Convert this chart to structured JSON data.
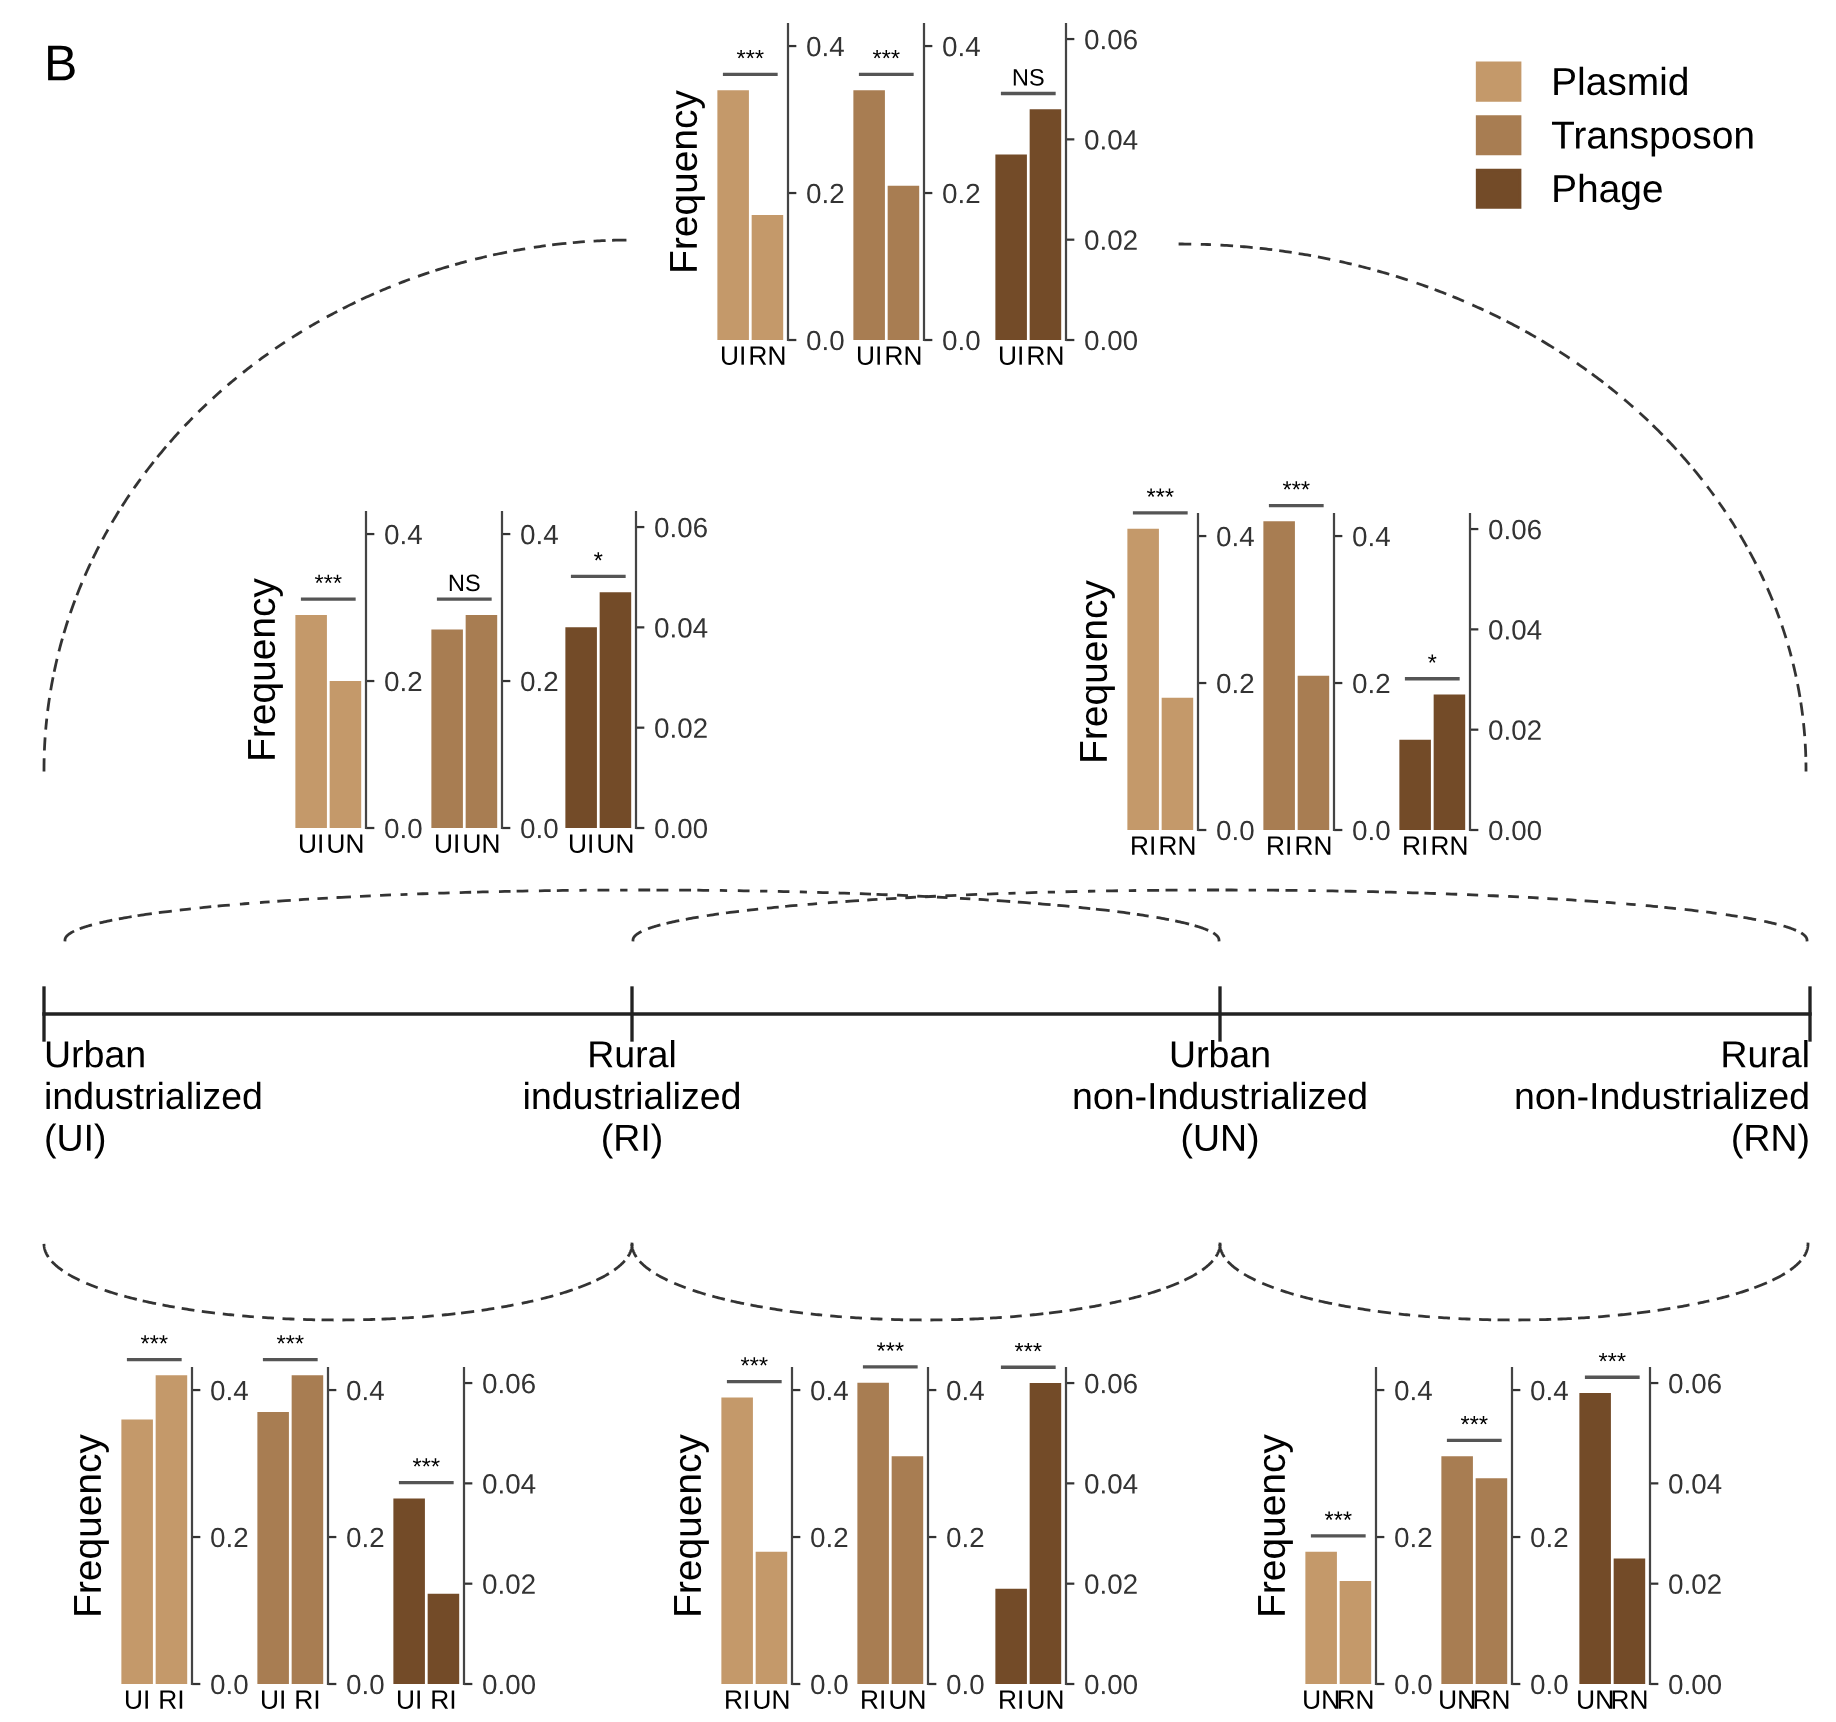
{
  "chart_data": [
    {
      "type": "bar",
      "ylabel": "Frequency",
      "categories": [
        "UI",
        "RN"
      ],
      "series": [
        {
          "name": "Plasmid",
          "color": "#c4996a",
          "values": [
            0.34,
            0.17
          ]
        }
      ],
      "ylim": [
        0,
        0.43
      ],
      "yticks": [
        {
          "value": 0,
          "label": "0.0"
        },
        {
          "value": 0.2,
          "label": "0.2"
        },
        {
          "value": 0.4,
          "label": "0.4"
        }
      ],
      "annotations": [
        "***"
      ],
      "legend": "top right"
    },
    {
      "type": "bar",
      "categories": [
        "UI",
        "RN"
      ],
      "series": [
        {
          "name": "Transposon",
          "color": "#a87d52",
          "values": [
            0.34,
            0.21
          ]
        }
      ],
      "ylim": [
        0,
        0.43
      ],
      "yticks": [
        {
          "value": 0,
          "label": "0.0"
        },
        {
          "value": 0.2,
          "label": "0.2"
        },
        {
          "value": 0.4,
          "label": "0.4"
        }
      ],
      "annotations": [
        "***"
      ]
    },
    {
      "type": "bar",
      "categories": [
        "UI",
        "RN"
      ],
      "series": [
        {
          "name": "Phage",
          "color": "#734b28",
          "values": [
            0.037,
            0.046
          ]
        }
      ],
      "ylim": [
        0,
        0.063
      ],
      "yticks": [
        {
          "value": 0,
          "label": "0.00"
        },
        {
          "value": 0.02,
          "label": "0.02"
        },
        {
          "value": 0.04,
          "label": "0.04"
        },
        {
          "value": 0.06,
          "label": "0.06"
        }
      ],
      "annotations": [
        "NS"
      ]
    },
    {
      "type": "bar",
      "ylabel": "Frequency",
      "categories": [
        "UI",
        "UN"
      ],
      "series": [
        {
          "name": "Plasmid",
          "color": "#c4996a",
          "values": [
            0.29,
            0.2
          ]
        }
      ],
      "ylim": [
        0,
        0.43
      ],
      "yticks": [
        {
          "value": 0,
          "label": "0.0"
        },
        {
          "value": 0.2,
          "label": "0.2"
        },
        {
          "value": 0.4,
          "label": "0.4"
        }
      ],
      "annotations": [
        "***"
      ]
    },
    {
      "type": "bar",
      "categories": [
        "UI",
        "UN"
      ],
      "series": [
        {
          "name": "Transposon",
          "color": "#a87d52",
          "values": [
            0.27,
            0.29
          ]
        }
      ],
      "ylim": [
        0,
        0.43
      ],
      "yticks": [
        {
          "value": 0,
          "label": "0.0"
        },
        {
          "value": 0.2,
          "label": "0.2"
        },
        {
          "value": 0.4,
          "label": "0.4"
        }
      ],
      "annotations": [
        "NS"
      ]
    },
    {
      "type": "bar",
      "categories": [
        "UI",
        "UN"
      ],
      "series": [
        {
          "name": "Phage",
          "color": "#734b28",
          "values": [
            0.04,
            0.047
          ]
        }
      ],
      "ylim": [
        0,
        0.063
      ],
      "yticks": [
        {
          "value": 0,
          "label": "0.00"
        },
        {
          "value": 0.02,
          "label": "0.02"
        },
        {
          "value": 0.04,
          "label": "0.04"
        },
        {
          "value": 0.06,
          "label": "0.06"
        }
      ],
      "annotations": [
        "*"
      ]
    },
    {
      "type": "bar",
      "ylabel": "Frequency",
      "categories": [
        "RI",
        "RN"
      ],
      "series": [
        {
          "name": "Plasmid",
          "color": "#c4996a",
          "values": [
            0.41,
            0.18
          ]
        }
      ],
      "ylim": [
        0,
        0.43
      ],
      "yticks": [
        {
          "value": 0,
          "label": "0.0"
        },
        {
          "value": 0.2,
          "label": "0.2"
        },
        {
          "value": 0.4,
          "label": "0.4"
        }
      ],
      "annotations": [
        "***"
      ]
    },
    {
      "type": "bar",
      "categories": [
        "RI",
        "RN"
      ],
      "series": [
        {
          "name": "Transposon",
          "color": "#a87d52",
          "values": [
            0.42,
            0.21
          ]
        }
      ],
      "ylim": [
        0,
        0.43
      ],
      "yticks": [
        {
          "value": 0,
          "label": "0.0"
        },
        {
          "value": 0.2,
          "label": "0.2"
        },
        {
          "value": 0.4,
          "label": "0.4"
        }
      ],
      "annotations": [
        "***"
      ]
    },
    {
      "type": "bar",
      "categories": [
        "RI",
        "RN"
      ],
      "series": [
        {
          "name": "Phage",
          "color": "#734b28",
          "values": [
            0.018,
            0.027
          ]
        }
      ],
      "ylim": [
        0,
        0.063
      ],
      "yticks": [
        {
          "value": 0,
          "label": "0.00"
        },
        {
          "value": 0.02,
          "label": "0.02"
        },
        {
          "value": 0.04,
          "label": "0.04"
        },
        {
          "value": 0.06,
          "label": "0.06"
        }
      ],
      "annotations": [
        "*"
      ]
    },
    {
      "type": "bar",
      "ylabel": "Frequency",
      "categories": [
        "UI",
        "RI"
      ],
      "series": [
        {
          "name": "Plasmid",
          "color": "#c4996a",
          "values": [
            0.36,
            0.42
          ]
        }
      ],
      "ylim": [
        0,
        0.43
      ],
      "yticks": [
        {
          "value": 0,
          "label": "0.0"
        },
        {
          "value": 0.2,
          "label": "0.2"
        },
        {
          "value": 0.4,
          "label": "0.4"
        }
      ],
      "annotations": [
        "***"
      ]
    },
    {
      "type": "bar",
      "categories": [
        "UI",
        "RI"
      ],
      "series": [
        {
          "name": "Transposon",
          "color": "#a87d52",
          "values": [
            0.37,
            0.42
          ]
        }
      ],
      "ylim": [
        0,
        0.43
      ],
      "yticks": [
        {
          "value": 0,
          "label": "0.0"
        },
        {
          "value": 0.2,
          "label": "0.2"
        },
        {
          "value": 0.4,
          "label": "0.4"
        }
      ],
      "annotations": [
        "***"
      ]
    },
    {
      "type": "bar",
      "categories": [
        "UI",
        "RI"
      ],
      "series": [
        {
          "name": "Phage",
          "color": "#734b28",
          "values": [
            0.037,
            0.018
          ]
        }
      ],
      "ylim": [
        0,
        0.063
      ],
      "yticks": [
        {
          "value": 0,
          "label": "0.00"
        },
        {
          "value": 0.02,
          "label": "0.02"
        },
        {
          "value": 0.04,
          "label": "0.04"
        },
        {
          "value": 0.06,
          "label": "0.06"
        }
      ],
      "annotations": [
        "***"
      ]
    },
    {
      "type": "bar",
      "ylabel": "Frequency",
      "categories": [
        "RI",
        "UN"
      ],
      "series": [
        {
          "name": "Plasmid",
          "color": "#c4996a",
          "values": [
            0.39,
            0.18
          ]
        }
      ],
      "ylim": [
        0,
        0.43
      ],
      "yticks": [
        {
          "value": 0,
          "label": "0.0"
        },
        {
          "value": 0.2,
          "label": "0.2"
        },
        {
          "value": 0.4,
          "label": "0.4"
        }
      ],
      "annotations": [
        "***"
      ]
    },
    {
      "type": "bar",
      "categories": [
        "RI",
        "UN"
      ],
      "series": [
        {
          "name": "Transposon",
          "color": "#a87d52",
          "values": [
            0.41,
            0.31
          ]
        }
      ],
      "ylim": [
        0,
        0.43
      ],
      "yticks": [
        {
          "value": 0,
          "label": "0.0"
        },
        {
          "value": 0.2,
          "label": "0.2"
        },
        {
          "value": 0.4,
          "label": "0.4"
        }
      ],
      "annotations": [
        "***"
      ]
    },
    {
      "type": "bar",
      "categories": [
        "RI",
        "UN"
      ],
      "series": [
        {
          "name": "Phage",
          "color": "#734b28",
          "values": [
            0.019,
            0.06
          ]
        }
      ],
      "ylim": [
        0,
        0.063
      ],
      "yticks": [
        {
          "value": 0,
          "label": "0.00"
        },
        {
          "value": 0.02,
          "label": "0.02"
        },
        {
          "value": 0.04,
          "label": "0.04"
        },
        {
          "value": 0.06,
          "label": "0.06"
        }
      ],
      "annotations": [
        "***"
      ]
    },
    {
      "type": "bar",
      "ylabel": "Frequency",
      "categories": [
        "UN",
        "RN"
      ],
      "series": [
        {
          "name": "Plasmid",
          "color": "#c4996a",
          "values": [
            0.18,
            0.14
          ]
        }
      ],
      "ylim": [
        0,
        0.43
      ],
      "yticks": [
        {
          "value": 0,
          "label": "0.0"
        },
        {
          "value": 0.2,
          "label": "0.2"
        },
        {
          "value": 0.4,
          "label": "0.4"
        }
      ],
      "annotations": [
        "***"
      ]
    },
    {
      "type": "bar",
      "categories": [
        "UN",
        "RN"
      ],
      "series": [
        {
          "name": "Transposon",
          "color": "#a87d52",
          "values": [
            0.31,
            0.28
          ]
        }
      ],
      "ylim": [
        0,
        0.43
      ],
      "yticks": [
        {
          "value": 0,
          "label": "0.0"
        },
        {
          "value": 0.2,
          "label": "0.2"
        },
        {
          "value": 0.4,
          "label": "0.4"
        }
      ],
      "annotations": [
        "***"
      ]
    },
    {
      "type": "bar",
      "categories": [
        "UN",
        "RN"
      ],
      "series": [
        {
          "name": "Phage",
          "color": "#734b28",
          "values": [
            0.058,
            0.025
          ]
        }
      ],
      "ylim": [
        0,
        0.063
      ],
      "yticks": [
        {
          "value": 0,
          "label": "0.00"
        },
        {
          "value": 0.02,
          "label": "0.02"
        },
        {
          "value": 0.04,
          "label": "0.04"
        },
        {
          "value": 0.06,
          "label": "0.06"
        }
      ],
      "annotations": [
        "***"
      ]
    },
    {
      "type": "other",
      "annotations": [
        "B",
        "Urban\nindustrialized\n(UI)",
        "Rural\nindustrialized\n(RI)",
        "Urban\nnon-Industrialized\n(UN)",
        "Rural\nnon-Industrialized\n(RN)"
      ]
    }
  ]
}
